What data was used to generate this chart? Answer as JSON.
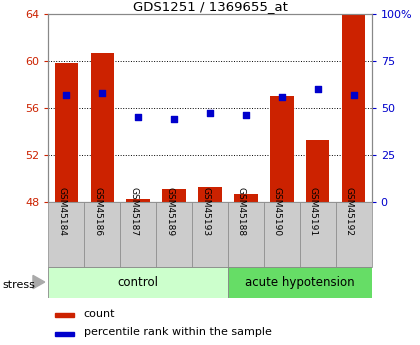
{
  "title": "GDS1251 / 1369655_at",
  "samples": [
    "GSM45184",
    "GSM45186",
    "GSM45187",
    "GSM45189",
    "GSM45193",
    "GSM45188",
    "GSM45190",
    "GSM45191",
    "GSM45192"
  ],
  "count_values": [
    59.8,
    60.7,
    48.2,
    49.1,
    49.3,
    48.7,
    57.0,
    53.3,
    64.0
  ],
  "percentile_values": [
    57,
    58,
    45,
    44,
    47,
    46,
    56,
    60,
    57
  ],
  "ylim_left": [
    48,
    64
  ],
  "ylim_right": [
    0,
    100
  ],
  "yticks_left": [
    48,
    52,
    56,
    60,
    64
  ],
  "yticks_right": [
    0,
    25,
    50,
    75,
    100
  ],
  "ytick_labels_right": [
    "0",
    "25",
    "50",
    "75",
    "100%"
  ],
  "groups": [
    {
      "label": "control",
      "start": 0,
      "end": 4,
      "color": "#ccffcc"
    },
    {
      "label": "acute hypotension",
      "start": 5,
      "end": 8,
      "color": "#66dd66"
    }
  ],
  "bar_color": "#cc2200",
  "dot_color": "#0000cc",
  "bar_width": 0.65,
  "bar_baseline": 48,
  "tick_color_left": "#cc2200",
  "tick_color_right": "#0000cc",
  "sample_box_color": "#cccccc",
  "grid_linestyle": "dotted"
}
